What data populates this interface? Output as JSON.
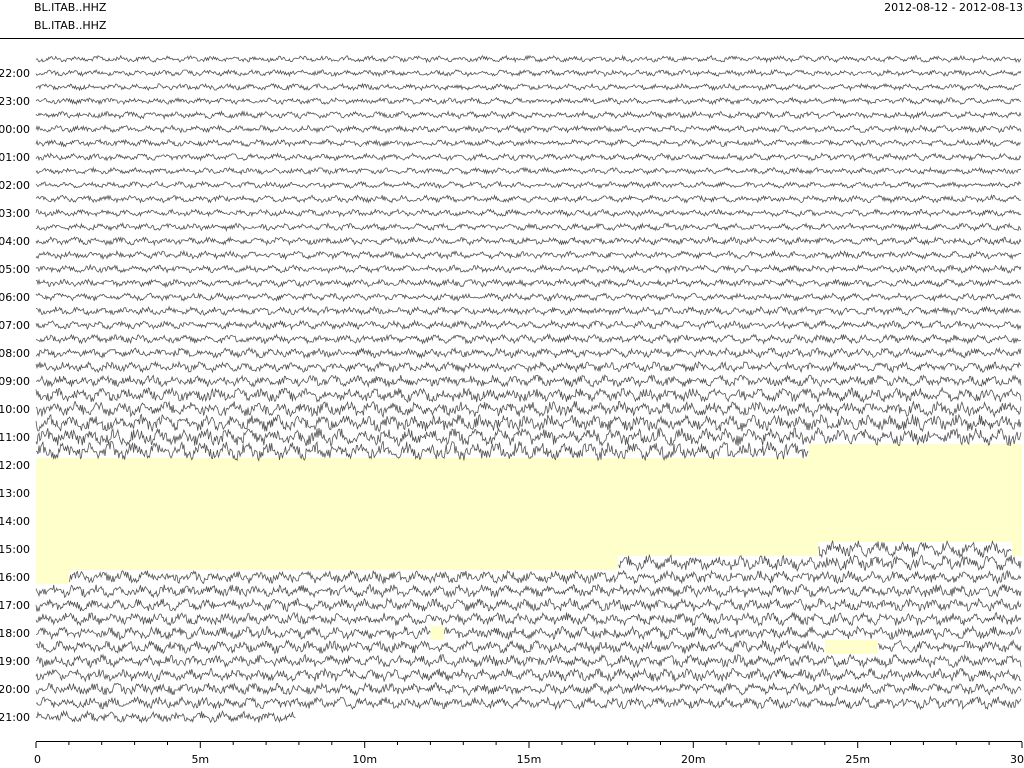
{
  "header": {
    "station_title": "BL.ITAB..HHZ",
    "channel_label": "BL.ITAB..HHZ",
    "date_range": "2012-08-12 - 2012-08-13"
  },
  "chart_data": {
    "type": "line",
    "xlim": [
      0,
      30
    ],
    "x_ticks": [
      {
        "value": 0,
        "label": "0"
      },
      {
        "value": 5,
        "label": "5m"
      },
      {
        "value": 10,
        "label": "10m"
      },
      {
        "value": 15,
        "label": "15m"
      },
      {
        "value": 20,
        "label": "20m"
      },
      {
        "value": 25,
        "label": "25m"
      },
      {
        "value": 30,
        "label": "30"
      }
    ],
    "hour_labels": [
      "22:00",
      "23:00",
      "00:00",
      "01:00",
      "02:00",
      "03:00",
      "04:00",
      "05:00",
      "06:00",
      "07:00",
      "08:00",
      "09:00",
      "10:00",
      "11:00",
      "12:00",
      "13:00",
      "14:00",
      "15:00",
      "16:00",
      "17:00",
      "18:00",
      "19:00",
      "20:00",
      "21:00"
    ],
    "line_count": 48,
    "minutes_per_line": 30,
    "trace_color": "#555555",
    "gap_color": "#ffffcc",
    "line_amplitudes": [
      0.5,
      0.5,
      0.5,
      0.5,
      0.55,
      0.55,
      0.55,
      0.55,
      0.5,
      0.5,
      0.55,
      0.55,
      0.55,
      0.6,
      0.6,
      0.6,
      0.6,
      0.6,
      0.65,
      0.65,
      0.7,
      0.75,
      0.8,
      0.9,
      1.1,
      1.2,
      1.3,
      1.4,
      1.5,
      1.6,
      1.6,
      1.6,
      1.55,
      1.5,
      1.45,
      1.3,
      1.2,
      1.0,
      1.0,
      1.0,
      1.0,
      1.0,
      1.0,
      1.0,
      1.0,
      0.95,
      0.95,
      0.9
    ],
    "data_gaps": [
      {
        "line": 28,
        "start_min": 23.5,
        "end_min": 30
      },
      {
        "line": 29,
        "start_min": 0,
        "end_min": 30
      },
      {
        "line": 30,
        "start_min": 0,
        "end_min": 30
      },
      {
        "line": 31,
        "start_min": 0,
        "end_min": 30
      },
      {
        "line": 32,
        "start_min": 0,
        "end_min": 30
      },
      {
        "line": 33,
        "start_min": 0,
        "end_min": 30
      },
      {
        "line": 34,
        "start_min": 0,
        "end_min": 30
      },
      {
        "line": 35,
        "start_min": 0,
        "end_min": 23.8
      },
      {
        "line": 35,
        "start_min": 29.7,
        "end_min": 30
      },
      {
        "line": 36,
        "start_min": 0,
        "end_min": 17.7
      },
      {
        "line": 37,
        "start_min": 0,
        "end_min": 1.0
      },
      {
        "line": 41,
        "start_min": 12.0,
        "end_min": 12.4
      },
      {
        "line": 42,
        "start_min": 24.0,
        "end_min": 25.6
      }
    ],
    "end_min_last_line": 7.9
  }
}
